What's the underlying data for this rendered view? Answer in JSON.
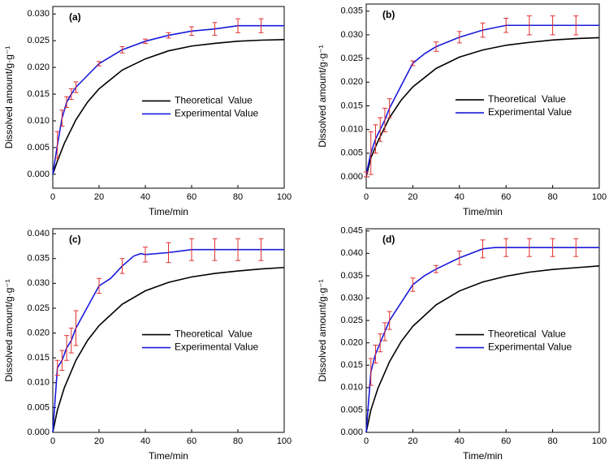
{
  "chart_data": [
    {
      "type": "line",
      "panel_label": "(a)",
      "xlabel": "Time/min",
      "ylabel": "Dissolved amount/g·g⁻¹",
      "xlim": [
        0,
        100
      ],
      "xticks": [
        0,
        20,
        40,
        60,
        80,
        100
      ],
      "ylim": [
        -0.0026,
        0.0314
      ],
      "yticks": [
        {
          "value": 0,
          "label": "0.000"
        },
        {
          "value": 0.005,
          "label": "0.005"
        },
        {
          "value": 0.01,
          "label": "0.010"
        },
        {
          "value": 0.015,
          "label": "0.015"
        },
        {
          "value": 0.02,
          "label": "0.020"
        },
        {
          "value": 0.025,
          "label": "0.025"
        },
        {
          "value": 0.03,
          "label": "0.030"
        }
      ],
      "series": [
        {
          "name": "Theoretical  Value",
          "color": "#000000",
          "x": [
            0,
            2,
            5,
            10,
            15,
            20,
            30,
            40,
            50,
            60,
            70,
            80,
            90,
            100
          ],
          "values": [
            0,
            0.0025,
            0.0058,
            0.0102,
            0.0135,
            0.016,
            0.0195,
            0.0216,
            0.0231,
            0.024,
            0.0245,
            0.0249,
            0.0251,
            0.0252
          ]
        },
        {
          "name": "Experimental Value",
          "color": "#1a1adc",
          "error_color": "#e03030",
          "x": [
            0,
            2,
            4,
            6,
            8,
            10,
            20,
            30,
            40,
            50,
            60,
            70,
            80,
            90,
            100
          ],
          "values": [
            0,
            0.0055,
            0.0105,
            0.0135,
            0.015,
            0.0163,
            0.0207,
            0.0233,
            0.0249,
            0.026,
            0.0268,
            0.0272,
            0.0278,
            0.0278,
            0.0278
          ],
          "errors": [
            null,
            0.0025,
            0.0015,
            0.001,
            0.001,
            0.001,
            0.0004,
            0.0006,
            0.0004,
            0.0005,
            0.0008,
            0.0012,
            0.0013,
            0.0013,
            null
          ]
        }
      ]
    },
    {
      "type": "line",
      "panel_label": "(b)",
      "xlabel": "Time/min",
      "ylabel": "Dissolved amount/g·g⁻¹",
      "xlim": [
        0,
        100
      ],
      "xticks": [
        0,
        20,
        40,
        60,
        80,
        100
      ],
      "ylim": [
        -0.0024,
        0.0365
      ],
      "yticks": [
        {
          "value": 0,
          "label": "0.000"
        },
        {
          "value": 0.005,
          "label": "0.005"
        },
        {
          "value": 0.01,
          "label": "0.010"
        },
        {
          "value": 0.015,
          "label": "0.015"
        },
        {
          "value": 0.02,
          "label": "0.020"
        },
        {
          "value": 0.025,
          "label": "0.025"
        },
        {
          "value": 0.03,
          "label": "0.030"
        },
        {
          "value": 0.035,
          "label": "0.035"
        }
      ],
      "series": [
        {
          "name": "Theoretical  Value",
          "color": "#000000",
          "x": [
            0,
            2,
            5,
            10,
            15,
            20,
            30,
            40,
            50,
            60,
            70,
            80,
            90,
            100
          ],
          "values": [
            0,
            0.004,
            0.0075,
            0.0125,
            0.0162,
            0.019,
            0.0229,
            0.0253,
            0.0268,
            0.0278,
            0.0284,
            0.0289,
            0.0292,
            0.0294
          ]
        },
        {
          "name": "Experimental Value",
          "color": "#1a1adc",
          "error_color": "#e03030",
          "x": [
            0,
            2,
            4,
            6,
            8,
            10,
            20,
            25,
            30,
            40,
            50,
            60,
            70,
            80,
            90,
            100
          ],
          "values": [
            0.0005,
            0.005,
            0.008,
            0.01,
            0.012,
            0.0145,
            0.024,
            0.026,
            0.0275,
            0.0295,
            0.031,
            0.032,
            0.032,
            0.032,
            0.032,
            0.032
          ],
          "errors": [
            0.0005,
            0.0045,
            0.003,
            0.0025,
            0.0025,
            0.002,
            0.0005,
            null,
            0.001,
            0.0012,
            0.0015,
            0.0015,
            0.002,
            0.002,
            0.002,
            null
          ]
        }
      ]
    },
    {
      "type": "line",
      "panel_label": "(c)",
      "xlabel": "Time/min",
      "ylabel": "Dissolved amount/g·g⁻¹",
      "xlim": [
        0,
        100
      ],
      "xticks": [
        0,
        20,
        40,
        60,
        80,
        100
      ],
      "ylim": [
        0,
        0.041
      ],
      "yticks": [
        {
          "value": 0,
          "label": "0.000"
        },
        {
          "value": 0.005,
          "label": "0.005"
        },
        {
          "value": 0.01,
          "label": "0.010"
        },
        {
          "value": 0.015,
          "label": "0.015"
        },
        {
          "value": 0.02,
          "label": "0.020"
        },
        {
          "value": 0.025,
          "label": "0.025"
        },
        {
          "value": 0.03,
          "label": "0.030"
        },
        {
          "value": 0.035,
          "label": "0.035"
        },
        {
          "value": 0.04,
          "label": "0.040"
        }
      ],
      "series": [
        {
          "name": "Theoretical  Value",
          "color": "#000000",
          "x": [
            0,
            2,
            5,
            10,
            15,
            20,
            30,
            40,
            50,
            60,
            70,
            80,
            90,
            100
          ],
          "values": [
            0,
            0.0045,
            0.009,
            0.0145,
            0.0185,
            0.0215,
            0.0258,
            0.0285,
            0.0302,
            0.0313,
            0.032,
            0.0325,
            0.0329,
            0.0332
          ]
        },
        {
          "name": "Experimental Value",
          "color": "#1a1adc",
          "error_color": "#e03030",
          "x": [
            0,
            2,
            4,
            6,
            8,
            10,
            20,
            25,
            30,
            35,
            38,
            40,
            50,
            55,
            60,
            70,
            80,
            90,
            100
          ],
          "values": [
            0,
            0.013,
            0.0145,
            0.017,
            0.0185,
            0.021,
            0.0295,
            0.031,
            0.0335,
            0.0355,
            0.036,
            0.0358,
            0.0362,
            0.0365,
            0.0368,
            0.0368,
            0.0368,
            0.0368,
            0.0368
          ],
          "errors": [
            null,
            0.0015,
            0.002,
            0.0025,
            0.0025,
            0.0035,
            0.0015,
            null,
            0.0015,
            null,
            null,
            0.0015,
            0.002,
            null,
            0.0022,
            0.0022,
            0.0022,
            0.0022,
            null
          ]
        }
      ]
    },
    {
      "type": "line",
      "panel_label": "(d)",
      "xlabel": "Time/min",
      "ylabel": "Dissolved amount/g·g⁻¹",
      "xlim": [
        0,
        100
      ],
      "xticks": [
        0,
        20,
        40,
        60,
        80,
        100
      ],
      "ylim": [
        0,
        0.0455
      ],
      "yticks": [
        {
          "value": 0,
          "label": "0.000"
        },
        {
          "value": 0.005,
          "label": "0.005"
        },
        {
          "value": 0.01,
          "label": "0.010"
        },
        {
          "value": 0.015,
          "label": "0.015"
        },
        {
          "value": 0.02,
          "label": "0.020"
        },
        {
          "value": 0.025,
          "label": "0.025"
        },
        {
          "value": 0.03,
          "label": "0.030"
        },
        {
          "value": 0.035,
          "label": "0.035"
        },
        {
          "value": 0.04,
          "label": "0.040"
        },
        {
          "value": 0.045,
          "label": "0.045"
        }
      ],
      "series": [
        {
          "name": "Theoretical  Value",
          "color": "#000000",
          "x": [
            0,
            2,
            5,
            10,
            15,
            20,
            30,
            40,
            50,
            60,
            70,
            80,
            90,
            100
          ],
          "values": [
            0,
            0.005,
            0.0098,
            0.0158,
            0.0203,
            0.0237,
            0.0285,
            0.0316,
            0.0336,
            0.0349,
            0.0358,
            0.0364,
            0.0368,
            0.0372
          ]
        },
        {
          "name": "Experimental Value",
          "color": "#1a1adc",
          "error_color": "#e03030",
          "x": [
            0,
            2,
            4,
            6,
            8,
            10,
            20,
            25,
            30,
            40,
            50,
            55,
            60,
            70,
            80,
            90,
            100
          ],
          "values": [
            0,
            0.0135,
            0.0175,
            0.02,
            0.0225,
            0.025,
            0.033,
            0.035,
            0.0365,
            0.039,
            0.041,
            0.0413,
            0.0413,
            0.0413,
            0.0413,
            0.0413,
            0.0413
          ],
          "errors": [
            null,
            0.003,
            0.002,
            0.002,
            0.002,
            0.002,
            0.0015,
            null,
            0.0008,
            0.0015,
            0.002,
            null,
            0.002,
            0.002,
            0.002,
            0.002,
            null
          ]
        }
      ]
    }
  ]
}
